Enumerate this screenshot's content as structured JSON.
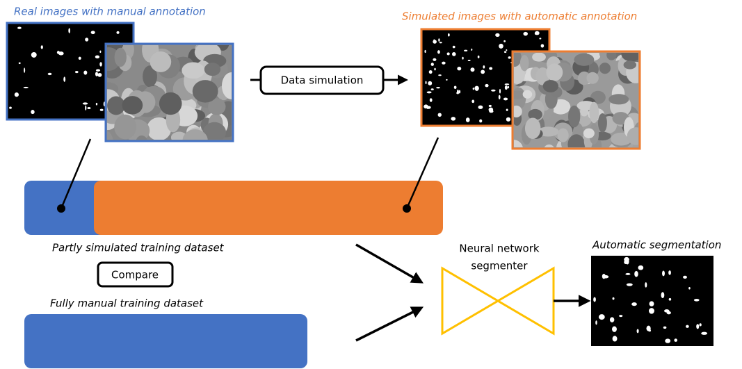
{
  "real_images_label": "Real images with manual annotation",
  "simulated_images_label": "Simulated images with automatic annotation",
  "data_simulation_step": "Data simulation",
  "partly_simulated_label": "Partly simulated training dataset",
  "compare_step": "Compare",
  "fully_manual_label": "Fully manual training dataset",
  "segmenter_label": [
    "Neural network",
    "segmenter"
  ],
  "automatic_segmentation_label": "Automatic segmentation"
}
